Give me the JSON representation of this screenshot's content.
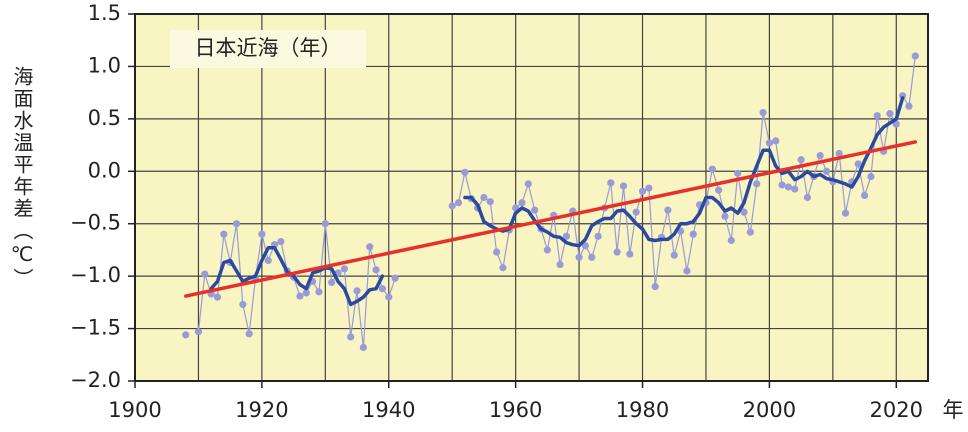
{
  "chart_data": {
    "type": "line",
    "annotation": "日本近海（年）",
    "y_label": "海面水温平年差（℃）",
    "x_unit": "年",
    "xlim": [
      1900,
      2025
    ],
    "ylim": [
      -2.0,
      1.5
    ],
    "xticks": [
      1900,
      1920,
      1940,
      1960,
      1980,
      2000,
      2020
    ],
    "xgrid": [
      1910,
      1920,
      1930,
      1940,
      1950,
      1960,
      1970,
      1980,
      1990,
      2000,
      2010,
      2020
    ],
    "yticks": [
      {
        "value": -2.0,
        "label": "−2.0"
      },
      {
        "value": -1.5,
        "label": "−1.5"
      },
      {
        "value": -1.0,
        "label": "−1.0"
      },
      {
        "value": -0.5,
        "label": "−0.5"
      },
      {
        "value": 0.0,
        "label": "0.0"
      },
      0.5,
      {
        "value": 1.0,
        "label": "1.0"
      },
      1.5
    ],
    "grid": true,
    "x": [
      1908,
      1909,
      1910,
      1911,
      1912,
      1913,
      1914,
      1915,
      1916,
      1917,
      1918,
      1919,
      1920,
      1921,
      1922,
      1923,
      1924,
      1925,
      1926,
      1927,
      1928,
      1929,
      1930,
      1931,
      1932,
      1933,
      1934,
      1935,
      1936,
      1937,
      1938,
      1939,
      1940,
      1941,
      1942,
      1943,
      1944,
      1945,
      1946,
      1947,
      1948,
      1949,
      1950,
      1951,
      1952,
      1953,
      1954,
      1955,
      1956,
      1957,
      1958,
      1959,
      1960,
      1961,
      1962,
      1963,
      1964,
      1965,
      1966,
      1967,
      1968,
      1969,
      1970,
      1971,
      1972,
      1973,
      1974,
      1975,
      1976,
      1977,
      1978,
      1979,
      1980,
      1981,
      1982,
      1983,
      1984,
      1985,
      1986,
      1987,
      1988,
      1989,
      1990,
      1991,
      1992,
      1993,
      1994,
      1995,
      1996,
      1997,
      1998,
      1999,
      2000,
      2001,
      2002,
      2003,
      2004,
      2005,
      2006,
      2007,
      2008,
      2009,
      2010,
      2011,
      2012,
      2013,
      2014,
      2015,
      2016,
      2017,
      2018,
      2019,
      2020,
      2021,
      2022,
      2023
    ],
    "series": [
      {
        "style": "points",
        "color": "#9a9ad8",
        "values": [
          -1.56,
          null,
          -1.53,
          -0.98,
          -1.17,
          -1.2,
          -0.6,
          -0.87,
          -0.5,
          -1.27,
          -1.55,
          -1.02,
          -0.6,
          -0.85,
          -0.7,
          -0.67,
          -0.95,
          -1.01,
          -1.19,
          -1.16,
          -1.05,
          -1.15,
          -0.5,
          -1.06,
          -0.97,
          -0.93,
          -1.58,
          -1.14,
          -1.68,
          -0.72,
          -0.94,
          -1.12,
          -1.2,
          -1.02,
          null,
          null,
          null,
          null,
          null,
          null,
          null,
          null,
          -0.33,
          -0.3,
          -0.01,
          -0.26,
          -0.35,
          -0.25,
          -0.29,
          -0.77,
          -0.92,
          -0.56,
          -0.35,
          -0.3,
          -0.12,
          -0.37,
          -0.55,
          -0.75,
          -0.42,
          -0.89,
          -0.62,
          -0.38,
          -0.82,
          -0.71,
          -0.82,
          -0.62,
          -0.35,
          -0.11,
          -0.77,
          -0.14,
          -0.79,
          -0.39,
          -0.19,
          -0.16,
          -1.1,
          -0.63,
          -0.37,
          -0.8,
          -0.57,
          -0.95,
          -0.6,
          -0.32,
          -0.3,
          0.02,
          -0.18,
          -0.43,
          -0.66,
          -0.02,
          -0.39,
          -0.58,
          -0.12,
          0.56,
          0.27,
          0.29,
          -0.13,
          -0.15,
          -0.17,
          0.11,
          -0.25,
          -0.05,
          0.15,
          0.0,
          -0.1,
          0.17,
          -0.4,
          -0.1,
          0.07,
          -0.23,
          -0.05,
          0.53,
          0.19,
          0.55,
          0.45,
          0.72,
          0.62,
          1.1
        ]
      },
      {
        "style": "line",
        "color": "#2b4a9f",
        "values": [
          null,
          null,
          null,
          null,
          -1.12,
          -1.05,
          -0.87,
          -0.85,
          -0.95,
          -1.05,
          -1.02,
          -1.0,
          -0.85,
          -0.73,
          -0.73,
          -0.84,
          -0.96,
          -1.0,
          -1.08,
          -1.12,
          -0.97,
          -0.95,
          -0.92,
          -0.93,
          -1.05,
          -1.12,
          -1.27,
          -1.24,
          -1.2,
          -1.13,
          -1.12,
          -1.0,
          null,
          null,
          null,
          null,
          null,
          null,
          null,
          null,
          null,
          null,
          null,
          null,
          -0.25,
          -0.25,
          -0.32,
          -0.48,
          -0.52,
          -0.55,
          -0.57,
          -0.55,
          -0.4,
          -0.35,
          -0.38,
          -0.47,
          -0.55,
          -0.58,
          -0.62,
          -0.63,
          -0.68,
          -0.7,
          -0.71,
          -0.65,
          -0.52,
          -0.48,
          -0.45,
          -0.45,
          -0.38,
          -0.37,
          -0.43,
          -0.5,
          -0.55,
          -0.65,
          -0.66,
          -0.65,
          -0.65,
          -0.6,
          -0.5,
          -0.5,
          -0.48,
          -0.4,
          -0.25,
          -0.25,
          -0.3,
          -0.38,
          -0.35,
          -0.4,
          -0.3,
          -0.1,
          0.05,
          0.2,
          0.2,
          0.05,
          -0.02,
          0.0,
          -0.08,
          -0.05,
          0.0,
          -0.05,
          -0.03,
          -0.07,
          -0.08,
          -0.1,
          -0.12,
          -0.15,
          -0.05,
          0.1,
          0.22,
          0.35,
          0.42,
          0.46,
          0.5,
          0.7,
          null,
          null
        ]
      },
      {
        "style": "trend",
        "color": "#e8302a",
        "x": [
          1908,
          2023
        ],
        "values": [
          -1.19,
          0.28
        ]
      }
    ]
  }
}
